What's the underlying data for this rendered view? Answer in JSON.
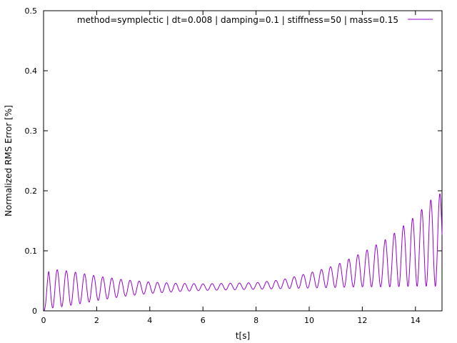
{
  "chart_data": {
    "type": "line",
    "title": "",
    "xlabel": "t[s]",
    "ylabel": "Normalized RMS Error [%]",
    "xlim": [
      0,
      15
    ],
    "ylim": [
      0,
      0.5
    ],
    "x_ticks": [
      0,
      2,
      4,
      6,
      8,
      10,
      12,
      14
    ],
    "y_ticks": [
      0,
      0.1,
      0.2,
      0.3,
      0.4,
      0.5
    ],
    "x_tick_labels": [
      "0",
      "2",
      "4",
      "6",
      "8",
      "10",
      "12",
      "14"
    ],
    "y_tick_labels": [
      "0",
      "0.1",
      "0.2",
      "0.3",
      "0.4",
      "0.5"
    ],
    "grid": false,
    "legend_position": "top-right",
    "series": [
      {
        "name": "method=symplectic | dt=0.008 | damping=0.1 | stiffness=50 | mass=0.15",
        "color": "#9400d3",
        "oscillation_period_s": 0.343,
        "envelope": {
          "t": [
            0,
            0.2,
            1.0,
            2.0,
            3.0,
            4.0,
            5.0,
            6.0,
            7.0,
            8.0,
            9.0,
            10.0,
            11.0,
            12.0,
            13.0,
            14.0,
            14.8
          ],
          "upper": [
            0,
            0.07,
            0.066,
            0.058,
            0.052,
            0.048,
            0.046,
            0.045,
            0.046,
            0.047,
            0.052,
            0.063,
            0.076,
            0.097,
            0.122,
            0.158,
            0.195
          ],
          "lower": [
            0,
            0.004,
            0.009,
            0.017,
            0.024,
            0.029,
            0.032,
            0.034,
            0.035,
            0.036,
            0.037,
            0.038,
            0.039,
            0.04,
            0.04,
            0.041,
            0.041
          ]
        }
      }
    ]
  }
}
